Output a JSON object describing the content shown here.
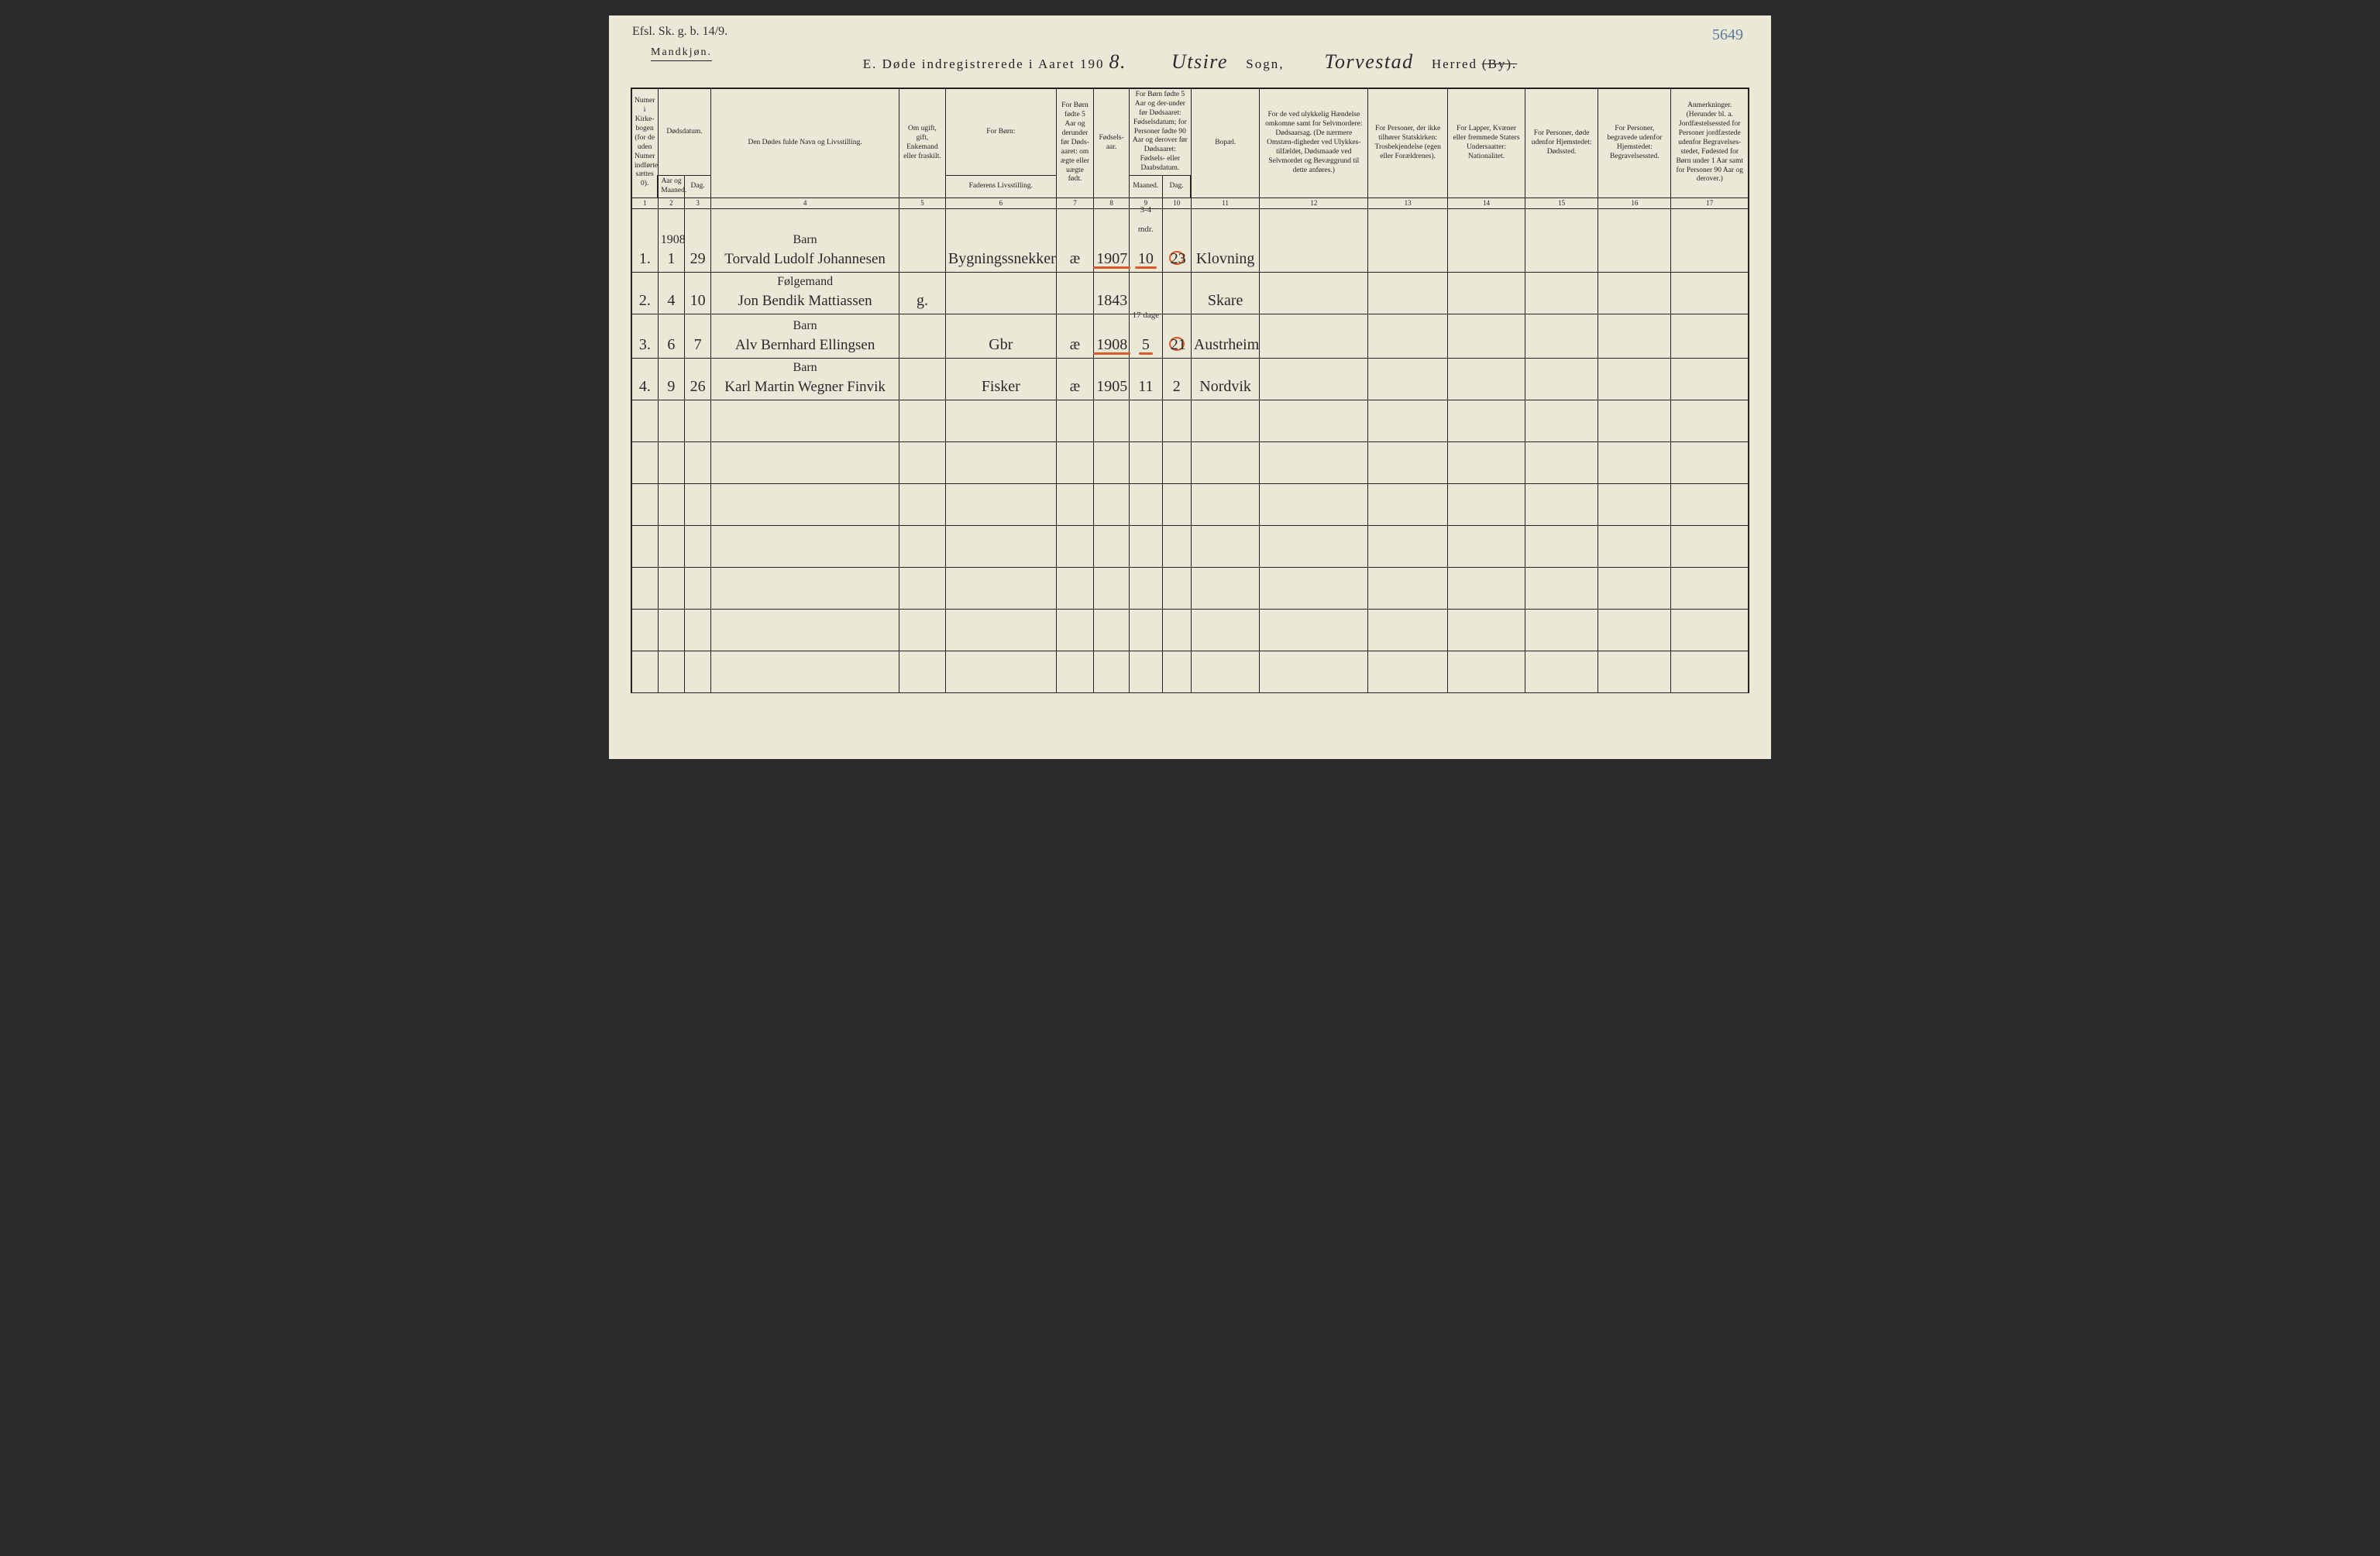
{
  "page": {
    "top_note": "Efsl. Sk. g. b. 14/9.",
    "gender_label": "Mandkjøn.",
    "page_number": "5649",
    "title": {
      "prefix": "E.  Døde indregistrerede i Aaret 190",
      "year_suffix": "8.",
      "sogn_value": "Utsire",
      "sogn_label": "Sogn,",
      "herred_value": "Torvestad",
      "herred_label": "Herred",
      "by_struck": "(By)."
    },
    "background_color": "#ebe8d8",
    "ink_color": "#222222",
    "red_color": "#d85a2a",
    "blue_color": "#5a7a9a"
  },
  "columns": {
    "widths_pct": [
      2.4,
      2.4,
      2.4,
      17,
      4.2,
      10,
      3.4,
      3.2,
      3,
      2.6,
      6.2,
      9.8,
      7.2,
      7,
      6.6,
      6.6,
      7
    ],
    "numbers": [
      "1",
      "2",
      "3",
      "4",
      "5",
      "6",
      "7",
      "8",
      "9",
      "10",
      "11",
      "12",
      "13",
      "14",
      "15",
      "16",
      "17"
    ],
    "headers": {
      "c1": "Numer i Kirke-bogen (for de uden Numer indførte sættes 0).",
      "c2_top": "Dødsdatum.",
      "c2": "Aar og Maaned.",
      "c3": "Dag.",
      "c4": "Den Dødes fulde Navn og Livsstilling.",
      "c5": "Om ugift, gift, Enkemand eller fraskilt.",
      "c6_top": "For Børn:",
      "c6": "Faderens Livsstilling.",
      "c7": "For Børn fødte 5 Aar og derunder før Døds-aaret: om ægte eller uægte født.",
      "c8": "Fødsels-aar.",
      "c9_10_top": "For Børn fødte 5 Aar og der-under før Dødsaaret: Fødselsdatum; for Personer fødte 90 Aar og derover før Dødsaaret: Fødsels- eller Daabsdatum.",
      "c9": "Maaned.",
      "c10": "Dag.",
      "c11": "Bopæl.",
      "c12": "For de ved ulykkelig Hændelse omkomne samt for Selvmordere: Dødsaarsag. (De nærmere Omstæn-digheder ved Ulykkes-tilfældet, Dødsmaade ved Selvmordet og Bevæggrund til dette anføres.)",
      "c13": "For Personer, der ikke tilhører Statskirken: Trosbekjendelse (egen eller Forældrenes).",
      "c14": "For Lapper, Kvæner eller fremmede Staters Undersaatter: Nationalitet.",
      "c15": "For Personer, døde udenfor Hjemstedet: Dødssted.",
      "c16": "For Personer, begravede udenfor Hjemstedet: Begravelsessted.",
      "c17": "Anmerkninger. (Herunder bl. a. Jordfæstelsessted for Personer jordfæstede udenfor Begravelses-stedet, Fødested for Børn under 1 Aar samt for Personer 90 Aar og derover.)"
    }
  },
  "year_head": "1908",
  "rows": [
    {
      "num": "1.",
      "maaned": "1",
      "dag": "29",
      "occupation": "Barn",
      "name": "Torvald Ludolf Johannesen",
      "col5": "",
      "col6": "Bygningssnekker",
      "col7": "æ",
      "faar": "1907",
      "fmaaned": "10",
      "fdag": "23",
      "fdag_circled": true,
      "age_note": "3-4 mdr.",
      "bopael": "Klovning",
      "red_underline": true
    },
    {
      "num": "2.",
      "maaned": "4",
      "dag": "10",
      "occupation": "Følgemand",
      "name": "Jon Bendik Mattiassen",
      "col5": "g.",
      "col6": "",
      "col7": "",
      "faar": "1843",
      "fmaaned": "",
      "fdag": "",
      "fdag_circled": false,
      "age_note": "",
      "bopael": "Skare",
      "red_underline": false
    },
    {
      "num": "3.",
      "maaned": "6",
      "dag": "7",
      "occupation": "Barn",
      "name": "Alv Bernhard Ellingsen",
      "col5": "",
      "col6": "Gbr",
      "col7": "æ",
      "faar": "1908",
      "fmaaned": "5",
      "fdag": "21",
      "fdag_circled": true,
      "age_note": "17 dage",
      "bopael": "Austrheim",
      "red_underline": true
    },
    {
      "num": "4.",
      "maaned": "9",
      "dag": "26",
      "occupation": "Barn",
      "name": "Karl Martin Wegner Finvik",
      "col5": "",
      "col6": "Fisker",
      "col7": "æ",
      "faar": "1905",
      "fmaaned": "11",
      "fdag": "2",
      "fdag_circled": false,
      "age_note": "",
      "bopael": "Nordvik",
      "red_underline": false
    }
  ],
  "blank_rows": 7
}
